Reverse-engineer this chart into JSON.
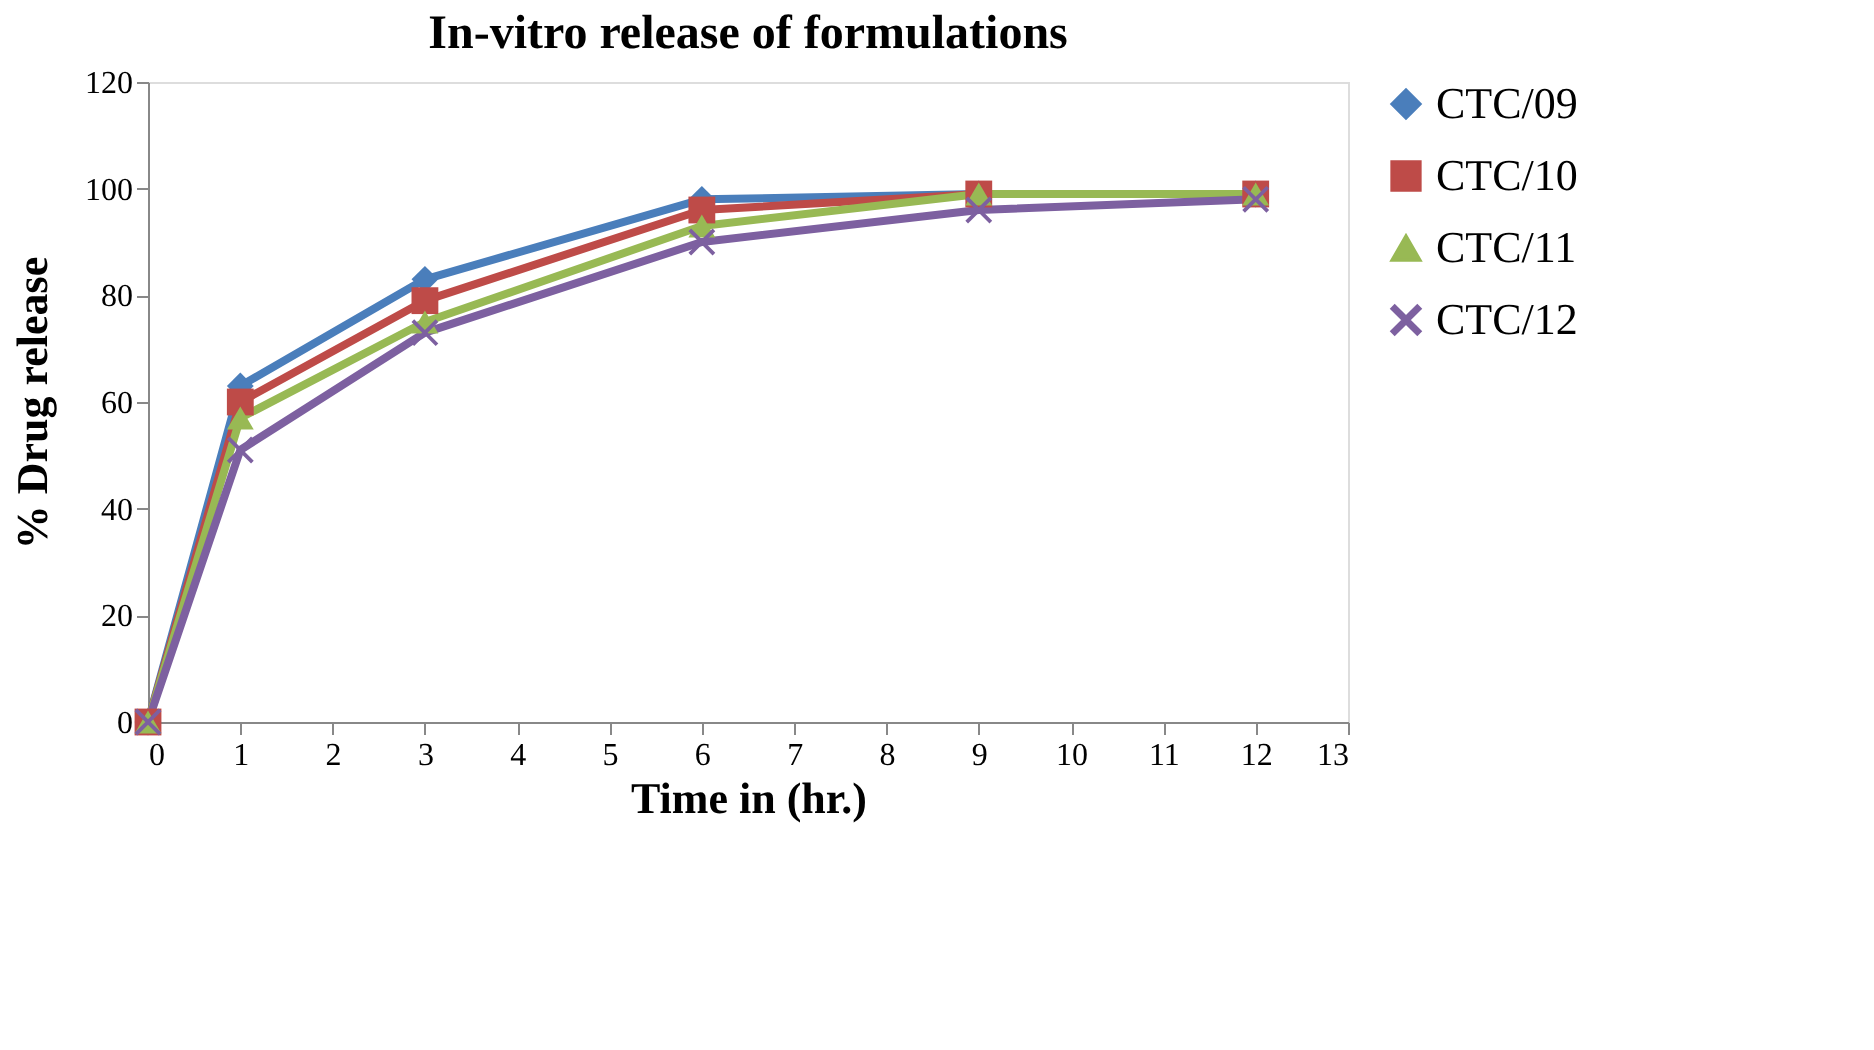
{
  "chart_data": {
    "type": "line",
    "title": "In-vitro release of formulations",
    "xlabel": "Time in (hr.)",
    "ylabel": "% Drug release",
    "x": [
      0,
      1,
      3,
      6,
      9,
      12
    ],
    "series": [
      {
        "name": "CTC/09",
        "color": "#4a7ebb",
        "marker": "diamond",
        "values": [
          0,
          63,
          83,
          98,
          99,
          99
        ]
      },
      {
        "name": "CTC/10",
        "color": "#be4b48",
        "marker": "square",
        "values": [
          0,
          60,
          79,
          96,
          99,
          99
        ]
      },
      {
        "name": "CTC/11",
        "color": "#98b954",
        "marker": "triangle",
        "values": [
          0,
          57,
          75,
          93,
          99,
          99
        ]
      },
      {
        "name": "CTC/12",
        "color": "#7d60a0",
        "marker": "cross",
        "values": [
          0,
          51,
          73,
          90,
          96,
          98
        ]
      }
    ],
    "xlim": [
      0,
      13
    ],
    "xticks": [
      0,
      1,
      2,
      3,
      4,
      5,
      6,
      7,
      8,
      9,
      10,
      11,
      12,
      13
    ],
    "ylim": [
      0,
      120
    ],
    "yticks": [
      0,
      20,
      40,
      60,
      80,
      100,
      120
    ],
    "grid": false,
    "legend": "right",
    "line_style": "solid"
  }
}
